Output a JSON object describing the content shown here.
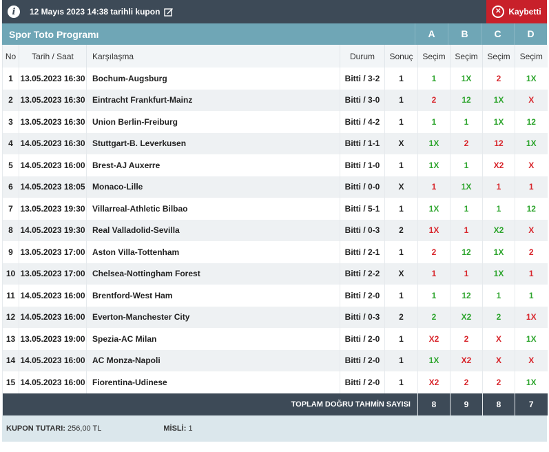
{
  "header": {
    "title": "12 Mayıs 2023 14:38 tarihli kupon",
    "status": "Kaybetti"
  },
  "program": {
    "name": "Spor Toto Programı",
    "columns": [
      "A",
      "B",
      "C",
      "D"
    ]
  },
  "table": {
    "headers": [
      "No",
      "Tarih / Saat",
      "Karşılaşma",
      "Durum",
      "Sonuç",
      "Seçim",
      "Seçim",
      "Seçim",
      "Seçim"
    ],
    "rows": [
      {
        "no": "1",
        "date": "13.05.2023 16:30",
        "match": "Bochum-Augsburg",
        "status": "Bitti / 3-2",
        "result": "1",
        "a": "1",
        "b": "1X",
        "c": "2",
        "d": "1X"
      },
      {
        "no": "2",
        "date": "13.05.2023 16:30",
        "match": "Eintracht Frankfurt-Mainz",
        "status": "Bitti / 3-0",
        "result": "1",
        "a": "2",
        "b": "12",
        "c": "1X",
        "d": "X"
      },
      {
        "no": "3",
        "date": "13.05.2023 16:30",
        "match": "Union Berlin-Freiburg",
        "status": "Bitti / 4-2",
        "result": "1",
        "a": "1",
        "b": "1",
        "c": "1X",
        "d": "12"
      },
      {
        "no": "4",
        "date": "14.05.2023 16:30",
        "match": "Stuttgart-B. Leverkusen",
        "status": "Bitti / 1-1",
        "result": "X",
        "a": "1X",
        "b": "2",
        "c": "12",
        "d": "1X"
      },
      {
        "no": "5",
        "date": "14.05.2023 16:00",
        "match": "Brest-AJ Auxerre",
        "status": "Bitti / 1-0",
        "result": "1",
        "a": "1X",
        "b": "1",
        "c": "X2",
        "d": "X"
      },
      {
        "no": "6",
        "date": "14.05.2023 18:05",
        "match": "Monaco-Lille",
        "status": "Bitti / 0-0",
        "result": "X",
        "a": "1",
        "b": "1X",
        "c": "1",
        "d": "1"
      },
      {
        "no": "7",
        "date": "13.05.2023 19:30",
        "match": "Villarreal-Athletic Bilbao",
        "status": "Bitti / 5-1",
        "result": "1",
        "a": "1X",
        "b": "1",
        "c": "1",
        "d": "12"
      },
      {
        "no": "8",
        "date": "14.05.2023 19:30",
        "match": "Real Valladolid-Sevilla",
        "status": "Bitti / 0-3",
        "result": "2",
        "a": "1X",
        "b": "1",
        "c": "X2",
        "d": "X"
      },
      {
        "no": "9",
        "date": "13.05.2023 17:00",
        "match": "Aston Villa-Tottenham",
        "status": "Bitti / 2-1",
        "result": "1",
        "a": "2",
        "b": "12",
        "c": "1X",
        "d": "2"
      },
      {
        "no": "10",
        "date": "13.05.2023 17:00",
        "match": "Chelsea-Nottingham Forest",
        "status": "Bitti / 2-2",
        "result": "X",
        "a": "1",
        "b": "1",
        "c": "1X",
        "d": "1"
      },
      {
        "no": "11",
        "date": "14.05.2023 16:00",
        "match": "Brentford-West Ham",
        "status": "Bitti / 2-0",
        "result": "1",
        "a": "1",
        "b": "12",
        "c": "1",
        "d": "1"
      },
      {
        "no": "12",
        "date": "14.05.2023 16:00",
        "match": "Everton-Manchester City",
        "status": "Bitti / 0-3",
        "result": "2",
        "a": "2",
        "b": "X2",
        "c": "2",
        "d": "1X"
      },
      {
        "no": "13",
        "date": "13.05.2023 19:00",
        "match": "Spezia-AC Milan",
        "status": "Bitti / 2-0",
        "result": "1",
        "a": "X2",
        "b": "2",
        "c": "X",
        "d": "1X"
      },
      {
        "no": "14",
        "date": "14.05.2023 16:00",
        "match": "AC Monza-Napoli",
        "status": "Bitti / 2-0",
        "result": "1",
        "a": "1X",
        "b": "X2",
        "c": "X",
        "d": "X"
      },
      {
        "no": "15",
        "date": "14.05.2023 16:00",
        "match": "Fiorentina-Udinese",
        "status": "Bitti / 2-0",
        "result": "1",
        "a": "X2",
        "b": "2",
        "c": "2",
        "d": "1X"
      }
    ],
    "total_label": "TOPLAM DOĞRU TAHMİN SAYISI",
    "totals": {
      "a": "8",
      "b": "9",
      "c": "8",
      "d": "7"
    }
  },
  "footer": {
    "amount_label": "KUPON TUTARI:",
    "amount_value": "256,00 TL",
    "multiplier_label": "MİSLİ:",
    "multiplier_value": "1"
  },
  "colors": {
    "correct": "#2ea52e",
    "wrong": "#d8262c",
    "header": "#3d4a57",
    "program_bar": "#6fa6b6",
    "lost": "#c8202a"
  },
  "icons": {
    "info": "info-icon",
    "edit": "edit-icon",
    "lost": "close-circle-icon"
  }
}
